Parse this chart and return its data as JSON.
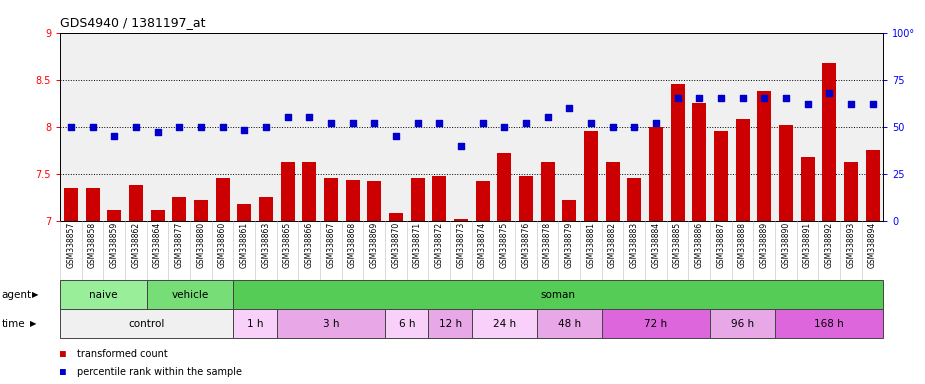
{
  "title": "GDS4940 / 1381197_at",
  "gsm_labels": [
    "GSM338857",
    "GSM338858",
    "GSM338859",
    "GSM338862",
    "GSM338864",
    "GSM338877",
    "GSM338880",
    "GSM338860",
    "GSM338861",
    "GSM338863",
    "GSM338865",
    "GSM338866",
    "GSM338867",
    "GSM338868",
    "GSM338869",
    "GSM338870",
    "GSM338871",
    "GSM338872",
    "GSM338873",
    "GSM338874",
    "GSM338875",
    "GSM338876",
    "GSM338878",
    "GSM338879",
    "GSM338881",
    "GSM338882",
    "GSM338883",
    "GSM338884",
    "GSM338885",
    "GSM338886",
    "GSM338887",
    "GSM338888",
    "GSM338889",
    "GSM338890",
    "GSM338891",
    "GSM338892",
    "GSM338893",
    "GSM338894"
  ],
  "bar_values": [
    7.35,
    7.35,
    7.12,
    7.38,
    7.12,
    7.25,
    7.22,
    7.45,
    7.18,
    7.25,
    7.62,
    7.62,
    7.46,
    7.43,
    7.42,
    7.08,
    7.45,
    7.48,
    7.02,
    7.42,
    7.72,
    7.48,
    7.62,
    7.22,
    7.95,
    7.62,
    7.46,
    8.0,
    8.45,
    8.25,
    7.95,
    8.08,
    8.38,
    8.02,
    7.68,
    8.68,
    7.62,
    7.75
  ],
  "scatter_values": [
    50,
    50,
    45,
    50,
    47,
    50,
    50,
    50,
    48,
    50,
    55,
    55,
    52,
    52,
    52,
    45,
    52,
    52,
    40,
    52,
    50,
    52,
    55,
    60,
    52,
    50,
    50,
    52,
    65,
    65,
    65,
    65,
    65,
    65,
    62,
    68,
    62,
    62
  ],
  "bar_color": "#cc0000",
  "scatter_color": "#0000cc",
  "ylim_left": [
    7.0,
    9.0
  ],
  "ylim_right": [
    0,
    100
  ],
  "yticks_left": [
    7.0,
    7.5,
    8.0,
    8.5,
    9.0
  ],
  "yticks_right": [
    0,
    25,
    50,
    75,
    100
  ],
  "hlines": [
    7.5,
    8.0,
    8.5
  ],
  "agent_groups": [
    {
      "label": "naive",
      "start": 0,
      "end": 4,
      "color": "#99ee99"
    },
    {
      "label": "vehicle",
      "start": 4,
      "end": 8,
      "color": "#77dd77"
    },
    {
      "label": "soman",
      "start": 8,
      "end": 38,
      "color": "#55cc55"
    }
  ],
  "time_groups": [
    {
      "label": "control",
      "start": 0,
      "end": 8,
      "color": "#f0f0f0"
    },
    {
      "label": "1 h",
      "start": 8,
      "end": 10,
      "color": "#f9d0f9"
    },
    {
      "label": "3 h",
      "start": 10,
      "end": 15,
      "color": "#e8a8e8"
    },
    {
      "label": "6 h",
      "start": 15,
      "end": 17,
      "color": "#f9d0f9"
    },
    {
      "label": "12 h",
      "start": 17,
      "end": 19,
      "color": "#e8a8e8"
    },
    {
      "label": "24 h",
      "start": 19,
      "end": 22,
      "color": "#f9d0f9"
    },
    {
      "label": "48 h",
      "start": 22,
      "end": 25,
      "color": "#e8a8e8"
    },
    {
      "label": "72 h",
      "start": 25,
      "end": 30,
      "color": "#dd66dd"
    },
    {
      "label": "96 h",
      "start": 30,
      "end": 33,
      "color": "#e8a8e8"
    },
    {
      "label": "168 h",
      "start": 33,
      "end": 38,
      "color": "#dd66dd"
    }
  ],
  "legend_items": [
    {
      "label": "transformed count",
      "color": "#cc0000"
    },
    {
      "label": "percentile rank within the sample",
      "color": "#0000cc"
    }
  ],
  "bg_color": "#ffffff",
  "chart_bg": "#f0f0f0"
}
